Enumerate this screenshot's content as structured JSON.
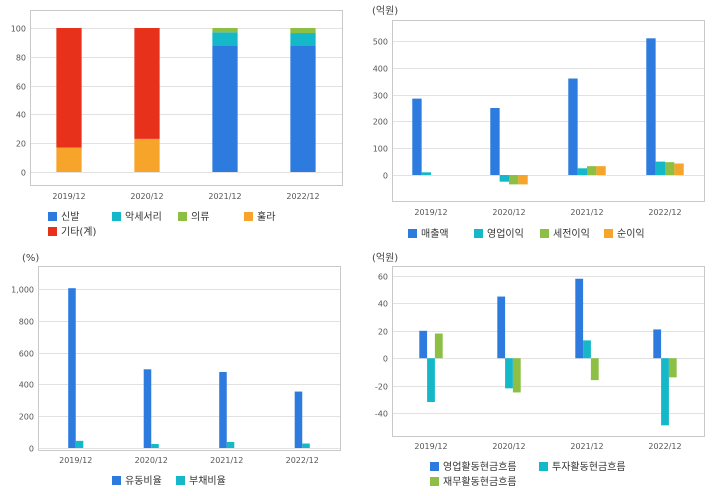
{
  "colors": {
    "blue": "#2e7be0",
    "teal": "#14b8c9",
    "green": "#8dbf45",
    "orange": "#f7a42a",
    "red": "#e8311b",
    "gridline": "#e2e2e2",
    "frame": "#c9c9c9"
  },
  "chart_data": [
    {
      "type": "bar",
      "stacked": true,
      "unit_label": "",
      "categories": [
        "2019/12",
        "2020/12",
        "2021/12",
        "2022/12"
      ],
      "ylim": [
        0,
        100
      ],
      "yticks": [
        "0",
        "20",
        "40",
        "60",
        "80",
        "100"
      ],
      "series": [
        {
          "name": "신발",
          "color": "blue",
          "values": [
            0,
            0,
            88,
            87.5
          ]
        },
        {
          "name": "악세서리",
          "color": "teal",
          "values": [
            0,
            0,
            9,
            9
          ]
        },
        {
          "name": "의류",
          "color": "green",
          "values": [
            0,
            0,
            3,
            3.5
          ]
        },
        {
          "name": "훌라",
          "color": "orange",
          "values": [
            17,
            23,
            0,
            0
          ]
        },
        {
          "name": "기타(계)",
          "color": "red",
          "values": [
            83,
            77,
            0,
            0
          ]
        }
      ]
    },
    {
      "type": "bar",
      "stacked": false,
      "unit_label": "(억원)",
      "categories": [
        "2019/12",
        "2020/12",
        "2021/12",
        "2022/12"
      ],
      "ylim": [
        -50,
        540
      ],
      "yticks": [
        "0",
        "100",
        "200",
        "300",
        "400",
        "500"
      ],
      "series": [
        {
          "name": "매출액",
          "color": "blue",
          "values": [
            285,
            250,
            360,
            510
          ]
        },
        {
          "name": "영업이익",
          "color": "teal",
          "values": [
            10,
            -25,
            25,
            50
          ]
        },
        {
          "name": "세전이익",
          "color": "green",
          "values": [
            0,
            -35,
            33,
            48
          ]
        },
        {
          "name": "순이익",
          "color": "orange",
          "values": [
            0,
            -35,
            33,
            43
          ]
        }
      ]
    },
    {
      "type": "bar",
      "stacked": false,
      "unit_label": "(%)",
      "categories": [
        "2019/12",
        "2020/12",
        "2021/12",
        "2022/12"
      ],
      "ylim": [
        0,
        1100
      ],
      "yticks": [
        "0",
        "200",
        "400",
        "600",
        "800",
        "1,000"
      ],
      "series": [
        {
          "name": "유동비율",
          "color": "blue",
          "values": [
            1005,
            495,
            478,
            355
          ]
        },
        {
          "name": "부채비율",
          "color": "teal",
          "values": [
            45,
            25,
            38,
            28
          ]
        }
      ]
    },
    {
      "type": "bar",
      "stacked": false,
      "unit_label": "(억원)",
      "categories": [
        "2019/12",
        "2020/12",
        "2021/12",
        "2022/12"
      ],
      "ylim": [
        -57,
        66
      ],
      "yticks": [
        "-40",
        "-20",
        "0",
        "20",
        "40",
        "60"
      ],
      "series": [
        {
          "name": "영업활동현금흐름",
          "color": "blue",
          "values": [
            20,
            45,
            58,
            21
          ]
        },
        {
          "name": "투자활동현금흐름",
          "color": "teal",
          "values": [
            -32,
            -22,
            13,
            -49
          ]
        },
        {
          "name": "재무활동현금흐름",
          "color": "green",
          "values": [
            18,
            -25,
            -16,
            -14
          ]
        }
      ]
    }
  ]
}
